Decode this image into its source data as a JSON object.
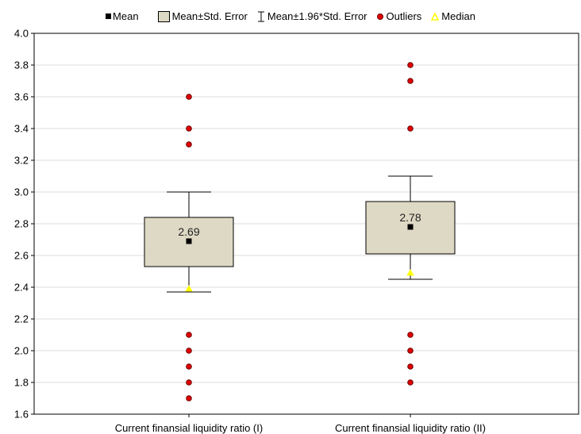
{
  "legend": {
    "mean": "Mean",
    "box": "Mean±Std. Error",
    "whisker": "Mean±1.96*Std. Error",
    "outliers": "Outliers",
    "median": "Median"
  },
  "colors": {
    "box_fill": "#ddd9c4",
    "outlier": "#e00000",
    "median": "#ffff00",
    "grid": "#dddddd"
  },
  "chart_data": {
    "type": "box",
    "title": "",
    "xlabel": "",
    "ylabel": "",
    "ylim": [
      1.6,
      4.0
    ],
    "yticks": [
      "4.0",
      "3.8",
      "3.6",
      "3.4",
      "3.2",
      "3.0",
      "2.8",
      "2.6",
      "2.4",
      "2.2",
      "2.0",
      "1.8",
      "1.6"
    ],
    "grid": true,
    "legend_position": "top",
    "categories": [
      "Current finansial liquidity ratio (I)",
      "Current finansial liquidity ratio (II)"
    ],
    "series": [
      {
        "category": "Current finansial liquidity ratio (I)",
        "mean": 2.69,
        "mean_label": "2.69",
        "box_low": 2.53,
        "box_high": 2.84,
        "whisker_low": 2.37,
        "whisker_high": 3.0,
        "median": 2.39,
        "outliers": [
          3.6,
          3.4,
          3.3,
          2.1,
          2.0,
          1.9,
          1.8,
          1.7
        ]
      },
      {
        "category": "Current finansial liquidity ratio (II)",
        "mean": 2.78,
        "mean_label": "2.78",
        "box_low": 2.61,
        "box_high": 2.94,
        "whisker_low": 2.45,
        "whisker_high": 3.1,
        "median": 2.49,
        "outliers": [
          3.8,
          3.7,
          3.4,
          2.1,
          2.0,
          1.9,
          1.8
        ]
      }
    ]
  }
}
